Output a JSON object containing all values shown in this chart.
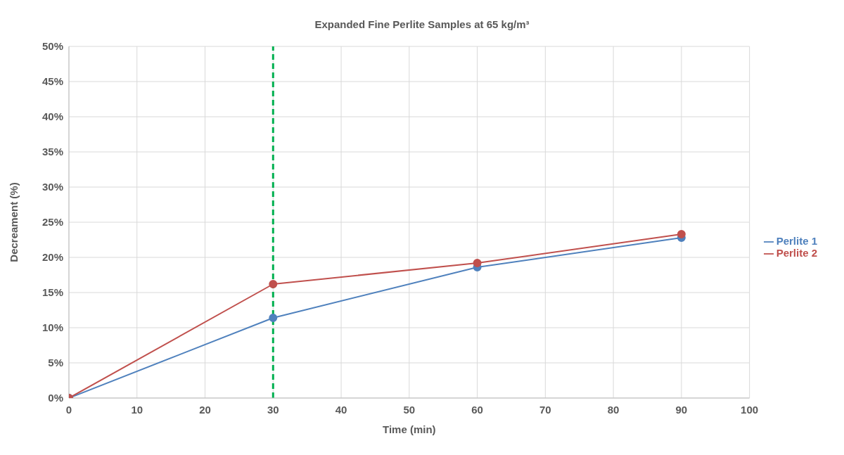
{
  "chart_data": {
    "type": "line",
    "title": "Expanded Fine Perlite Samples at 65 kg/m³",
    "xlabel": "Time (min)",
    "ylabel": "Decreament (%)",
    "x": [
      0,
      30,
      60,
      90
    ],
    "series": [
      {
        "name": "Perlite 1",
        "color": "#4f81bd",
        "values": [
          0,
          11.4,
          18.6,
          22.8
        ]
      },
      {
        "name": "Perlite 2",
        "color": "#c0504d",
        "values": [
          0,
          16.2,
          19.2,
          23.3
        ]
      }
    ],
    "xlim": [
      0,
      100
    ],
    "xticks": [
      0,
      10,
      20,
      30,
      40,
      50,
      60,
      70,
      80,
      90,
      100
    ],
    "ylim": [
      0,
      50
    ],
    "yticks": [
      {
        "value": 0,
        "label": "0%"
      },
      {
        "value": 5,
        "label": "5%"
      },
      {
        "value": 10,
        "label": "10%"
      },
      {
        "value": 15,
        "label": "15%"
      },
      {
        "value": 20,
        "label": "20%"
      },
      {
        "value": 25,
        "label": "25%"
      },
      {
        "value": 30,
        "label": "30%"
      },
      {
        "value": 35,
        "label": "35%"
      },
      {
        "value": 40,
        "label": "40%"
      },
      {
        "value": 45,
        "label": "45%"
      },
      {
        "value": 50,
        "label": "50%"
      }
    ],
    "grid": true,
    "legend": "right",
    "marker": "circle",
    "line_style": "solid",
    "ref_lines": [
      {
        "axis": "x",
        "value": 30,
        "color": "#00b050",
        "line_style": "dashed"
      }
    ]
  }
}
